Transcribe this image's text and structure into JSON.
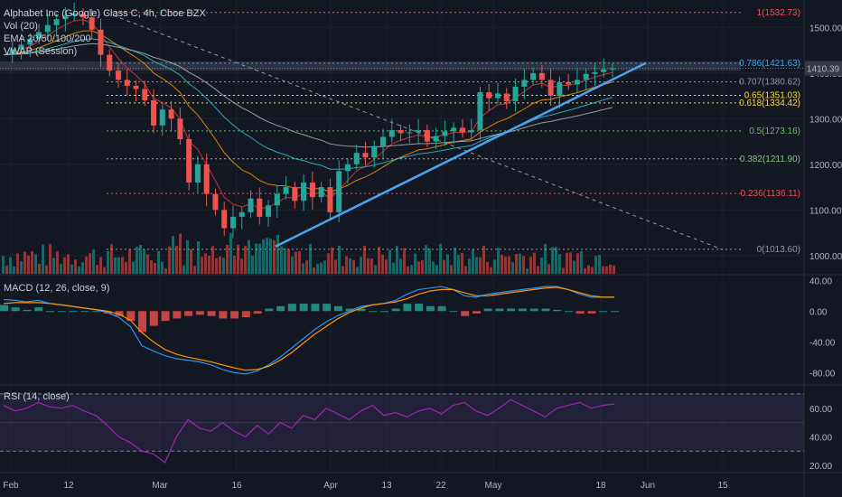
{
  "header": {
    "title": "Alphabet Inc (Google) Class C, 4h, Cboe BZX",
    "vol_label": "Vol (20)",
    "ema_label": "EMA 20/50/100/200",
    "vwap_label": "VWAP (Session)"
  },
  "macd_label": "MACD (12, 26, close, 9)",
  "rsi_label": "RSI (14, close)",
  "last_price": "1410.39",
  "colors": {
    "background": "#131722",
    "up": "#26a69a",
    "down": "#ef5350",
    "trendline": "#4aa3f0",
    "macd": "#2196f3",
    "signal": "#ff9800",
    "rsi": "#9c27b0",
    "ema20": "#e53935",
    "ema50": "#ff9800",
    "ema100": "#26c6da",
    "ema200": "#b0b3ba"
  },
  "chart_data": [
    {
      "type": "candlestick",
      "title": "Alphabet Inc (Google) Class C, 4h, Cboe BZX",
      "x_ticks": [
        "Feb",
        "12",
        "Mar",
        "16",
        "Apr",
        "13",
        "22",
        "May",
        "18",
        "Jun",
        "15"
      ],
      "y_ticks": [
        1000.0,
        1100.0,
        1200.0,
        1300.0,
        1400.0,
        1500.0
      ],
      "ylim": [
        960,
        1560
      ],
      "price_path": [
        1440,
        1452,
        1462,
        1475,
        1490,
        1505,
        1518,
        1526,
        1530,
        1522,
        1495,
        1440,
        1405,
        1385,
        1372,
        1365,
        1340,
        1285,
        1320,
        1300,
        1255,
        1160,
        1200,
        1135,
        1100,
        1060,
        1085,
        1095,
        1125,
        1085,
        1110,
        1135,
        1150,
        1120,
        1160,
        1128,
        1150,
        1095,
        1185,
        1200,
        1225,
        1215,
        1240,
        1260,
        1275,
        1268,
        1270,
        1275,
        1250,
        1262,
        1272,
        1280,
        1270,
        1275,
        1358,
        1345,
        1355,
        1338,
        1370,
        1385,
        1400,
        1385,
        1350,
        1380,
        1375,
        1385,
        1398,
        1402,
        1408,
        1410
      ],
      "fib_levels": [
        {
          "ratio": "1",
          "price": 1532.73,
          "label": "1(1532.73)",
          "color": "#ef5350"
        },
        {
          "ratio": "0.786",
          "price": 1421.63,
          "label": "0.786(1421.63)",
          "color": "#42a5f5"
        },
        {
          "ratio": "0.707",
          "price": 1380.62,
          "label": "0.707(1380.62)",
          "color": "#9598a1"
        },
        {
          "ratio": "0.65",
          "price": 1351.03,
          "label": "0.65(1351.03)",
          "color": "#fdd835"
        },
        {
          "ratio": "0.618",
          "price": 1334.42,
          "label": "0.618(1334.42)",
          "color": "#fdd835"
        },
        {
          "ratio": "0.5",
          "price": 1273.16,
          "label": "0.5(1273.16)",
          "color": "#66bb6a"
        },
        {
          "ratio": "0.382",
          "price": 1211.9,
          "label": "0.382(1211.90)",
          "color": "#81c784"
        },
        {
          "ratio": "0.236",
          "price": 1136.11,
          "label": "0.236(1136.11)",
          "color": "#ef5350"
        },
        {
          "ratio": "0",
          "price": 1013.6,
          "label": "0(1013.60)",
          "color": "#9598a1"
        }
      ],
      "trendline": {
        "from": [
          1020,
          "Mar 16"
        ],
        "to": [
          1422,
          "Jun 1"
        ]
      },
      "grid": true
    },
    {
      "type": "line",
      "title": "MACD (12, 26, close, 9)",
      "y_ticks": [
        "40.00",
        "0.00",
        "-40.00",
        "-80.00"
      ],
      "ylim": [
        -95,
        45
      ],
      "macd": [
        15,
        14,
        12,
        14,
        10,
        8,
        6,
        4,
        2,
        -2,
        -8,
        -20,
        -45,
        -52,
        -58,
        -62,
        -64,
        -66,
        -70,
        -76,
        -80,
        -82,
        -78,
        -70,
        -60,
        -48,
        -36,
        -24,
        -14,
        -6,
        0,
        6,
        8,
        10,
        14,
        22,
        28,
        30,
        32,
        28,
        20,
        18,
        22,
        24,
        26,
        28,
        30,
        32,
        32,
        28,
        22,
        18,
        18,
        18
      ],
      "signal": [
        10,
        11,
        11,
        11,
        10,
        8,
        6,
        4,
        2,
        0,
        -4,
        -12,
        -28,
        -40,
        -50,
        -56,
        -60,
        -63,
        -66,
        -70,
        -74,
        -77,
        -76,
        -72,
        -64,
        -54,
        -42,
        -30,
        -20,
        -10,
        -2,
        4,
        8,
        10,
        12,
        16,
        22,
        26,
        28,
        28,
        24,
        20,
        20,
        22,
        24,
        26,
        28,
        30,
        31,
        28,
        24,
        20,
        18,
        18
      ]
    },
    {
      "type": "line",
      "title": "RSI (14, close)",
      "y_ticks": [
        "60.00",
        "40.00",
        "20.00"
      ],
      "ylim": [
        15,
        75
      ],
      "bands": [
        30,
        70
      ],
      "rsi": [
        62,
        58,
        60,
        64,
        61,
        60,
        62,
        58,
        55,
        48,
        40,
        36,
        30,
        28,
        22,
        40,
        52,
        46,
        44,
        50,
        44,
        40,
        48,
        42,
        50,
        46,
        55,
        52,
        60,
        56,
        52,
        58,
        62,
        55,
        57,
        54,
        58,
        60,
        56,
        62,
        64,
        58,
        55,
        60,
        66,
        62,
        58,
        54,
        60,
        62,
        64,
        60,
        62,
        63
      ]
    }
  ]
}
